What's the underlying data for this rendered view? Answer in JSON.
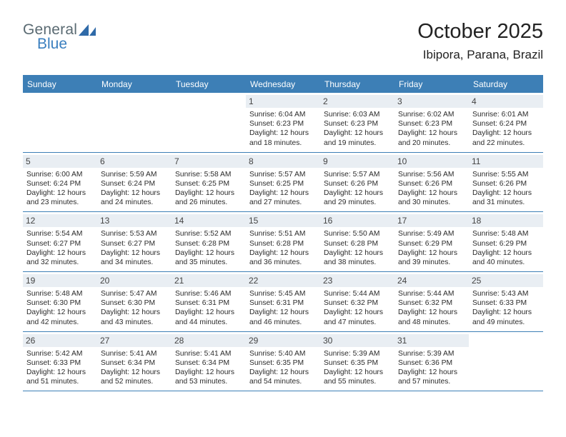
{
  "logo": {
    "line1": "General",
    "line2": "Blue"
  },
  "title": "October 2025",
  "location": "Ibipora, Parana, Brazil",
  "dayHeaders": [
    "Sunday",
    "Monday",
    "Tuesday",
    "Wednesday",
    "Thursday",
    "Friday",
    "Saturday"
  ],
  "colors": {
    "headerBar": "#3d7fb6",
    "dayNumBg": "#e9eef3",
    "logoGray": "#5a6a72",
    "logoBlue": "#3a7fbf"
  },
  "weeks": [
    [
      {
        "n": "",
        "sr": "",
        "ss": "",
        "dl": ""
      },
      {
        "n": "",
        "sr": "",
        "ss": "",
        "dl": ""
      },
      {
        "n": "",
        "sr": "",
        "ss": "",
        "dl": ""
      },
      {
        "n": "1",
        "sr": "Sunrise: 6:04 AM",
        "ss": "Sunset: 6:23 PM",
        "dl": "Daylight: 12 hours and 18 minutes."
      },
      {
        "n": "2",
        "sr": "Sunrise: 6:03 AM",
        "ss": "Sunset: 6:23 PM",
        "dl": "Daylight: 12 hours and 19 minutes."
      },
      {
        "n": "3",
        "sr": "Sunrise: 6:02 AM",
        "ss": "Sunset: 6:23 PM",
        "dl": "Daylight: 12 hours and 20 minutes."
      },
      {
        "n": "4",
        "sr": "Sunrise: 6:01 AM",
        "ss": "Sunset: 6:24 PM",
        "dl": "Daylight: 12 hours and 22 minutes."
      }
    ],
    [
      {
        "n": "5",
        "sr": "Sunrise: 6:00 AM",
        "ss": "Sunset: 6:24 PM",
        "dl": "Daylight: 12 hours and 23 minutes."
      },
      {
        "n": "6",
        "sr": "Sunrise: 5:59 AM",
        "ss": "Sunset: 6:24 PM",
        "dl": "Daylight: 12 hours and 24 minutes."
      },
      {
        "n": "7",
        "sr": "Sunrise: 5:58 AM",
        "ss": "Sunset: 6:25 PM",
        "dl": "Daylight: 12 hours and 26 minutes."
      },
      {
        "n": "8",
        "sr": "Sunrise: 5:57 AM",
        "ss": "Sunset: 6:25 PM",
        "dl": "Daylight: 12 hours and 27 minutes."
      },
      {
        "n": "9",
        "sr": "Sunrise: 5:57 AM",
        "ss": "Sunset: 6:26 PM",
        "dl": "Daylight: 12 hours and 29 minutes."
      },
      {
        "n": "10",
        "sr": "Sunrise: 5:56 AM",
        "ss": "Sunset: 6:26 PM",
        "dl": "Daylight: 12 hours and 30 minutes."
      },
      {
        "n": "11",
        "sr": "Sunrise: 5:55 AM",
        "ss": "Sunset: 6:26 PM",
        "dl": "Daylight: 12 hours and 31 minutes."
      }
    ],
    [
      {
        "n": "12",
        "sr": "Sunrise: 5:54 AM",
        "ss": "Sunset: 6:27 PM",
        "dl": "Daylight: 12 hours and 32 minutes."
      },
      {
        "n": "13",
        "sr": "Sunrise: 5:53 AM",
        "ss": "Sunset: 6:27 PM",
        "dl": "Daylight: 12 hours and 34 minutes."
      },
      {
        "n": "14",
        "sr": "Sunrise: 5:52 AM",
        "ss": "Sunset: 6:28 PM",
        "dl": "Daylight: 12 hours and 35 minutes."
      },
      {
        "n": "15",
        "sr": "Sunrise: 5:51 AM",
        "ss": "Sunset: 6:28 PM",
        "dl": "Daylight: 12 hours and 36 minutes."
      },
      {
        "n": "16",
        "sr": "Sunrise: 5:50 AM",
        "ss": "Sunset: 6:28 PM",
        "dl": "Daylight: 12 hours and 38 minutes."
      },
      {
        "n": "17",
        "sr": "Sunrise: 5:49 AM",
        "ss": "Sunset: 6:29 PM",
        "dl": "Daylight: 12 hours and 39 minutes."
      },
      {
        "n": "18",
        "sr": "Sunrise: 5:48 AM",
        "ss": "Sunset: 6:29 PM",
        "dl": "Daylight: 12 hours and 40 minutes."
      }
    ],
    [
      {
        "n": "19",
        "sr": "Sunrise: 5:48 AM",
        "ss": "Sunset: 6:30 PM",
        "dl": "Daylight: 12 hours and 42 minutes."
      },
      {
        "n": "20",
        "sr": "Sunrise: 5:47 AM",
        "ss": "Sunset: 6:30 PM",
        "dl": "Daylight: 12 hours and 43 minutes."
      },
      {
        "n": "21",
        "sr": "Sunrise: 5:46 AM",
        "ss": "Sunset: 6:31 PM",
        "dl": "Daylight: 12 hours and 44 minutes."
      },
      {
        "n": "22",
        "sr": "Sunrise: 5:45 AM",
        "ss": "Sunset: 6:31 PM",
        "dl": "Daylight: 12 hours and 46 minutes."
      },
      {
        "n": "23",
        "sr": "Sunrise: 5:44 AM",
        "ss": "Sunset: 6:32 PM",
        "dl": "Daylight: 12 hours and 47 minutes."
      },
      {
        "n": "24",
        "sr": "Sunrise: 5:44 AM",
        "ss": "Sunset: 6:32 PM",
        "dl": "Daylight: 12 hours and 48 minutes."
      },
      {
        "n": "25",
        "sr": "Sunrise: 5:43 AM",
        "ss": "Sunset: 6:33 PM",
        "dl": "Daylight: 12 hours and 49 minutes."
      }
    ],
    [
      {
        "n": "26",
        "sr": "Sunrise: 5:42 AM",
        "ss": "Sunset: 6:33 PM",
        "dl": "Daylight: 12 hours and 51 minutes."
      },
      {
        "n": "27",
        "sr": "Sunrise: 5:41 AM",
        "ss": "Sunset: 6:34 PM",
        "dl": "Daylight: 12 hours and 52 minutes."
      },
      {
        "n": "28",
        "sr": "Sunrise: 5:41 AM",
        "ss": "Sunset: 6:34 PM",
        "dl": "Daylight: 12 hours and 53 minutes."
      },
      {
        "n": "29",
        "sr": "Sunrise: 5:40 AM",
        "ss": "Sunset: 6:35 PM",
        "dl": "Daylight: 12 hours and 54 minutes."
      },
      {
        "n": "30",
        "sr": "Sunrise: 5:39 AM",
        "ss": "Sunset: 6:35 PM",
        "dl": "Daylight: 12 hours and 55 minutes."
      },
      {
        "n": "31",
        "sr": "Sunrise: 5:39 AM",
        "ss": "Sunset: 6:36 PM",
        "dl": "Daylight: 12 hours and 57 minutes."
      },
      {
        "n": "",
        "sr": "",
        "ss": "",
        "dl": ""
      }
    ]
  ]
}
